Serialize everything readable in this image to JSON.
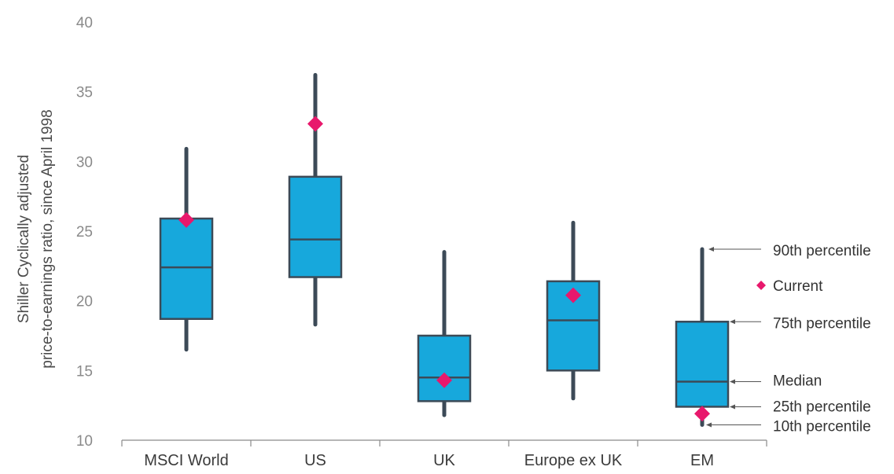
{
  "chart_data": {
    "type": "boxplot",
    "ylabel_line1": "Shiller Cyclically adjusted",
    "ylabel_line2": "price-to-earnings ratio, since April 1998",
    "ylim": [
      10,
      40
    ],
    "yticks": [
      10,
      15,
      20,
      25,
      30,
      35,
      40
    ],
    "categories": [
      "MSCI World",
      "US",
      "UK",
      "Europe ex UK",
      "EM"
    ],
    "boxes": [
      {
        "p10": 16.5,
        "p25": 18.7,
        "median": 22.4,
        "p75": 25.9,
        "p90": 30.9,
        "current": 25.8
      },
      {
        "p10": 18.3,
        "p25": 21.7,
        "median": 24.4,
        "p75": 28.9,
        "p90": 36.2,
        "current": 32.7
      },
      {
        "p10": 11.8,
        "p25": 12.8,
        "median": 14.5,
        "p75": 17.5,
        "p90": 23.5,
        "current": 14.3
      },
      {
        "p10": 13.0,
        "p25": 15.0,
        "median": 18.6,
        "p75": 21.4,
        "p90": 25.6,
        "current": 20.4
      },
      {
        "p10": 11.1,
        "p25": 12.4,
        "median": 14.2,
        "p75": 18.5,
        "p90": 23.7,
        "current": 11.9
      }
    ],
    "legend": {
      "p90": "90th percentile",
      "current": "Current",
      "p75": "75th percentile",
      "median": "Median",
      "p25": "25th percentile",
      "p10": "10th percentile"
    },
    "colors": {
      "box_fill": "#17a8dc",
      "outline": "#3c4a57",
      "current_marker": "#e8186c",
      "axis": "#8a8a8a"
    }
  }
}
